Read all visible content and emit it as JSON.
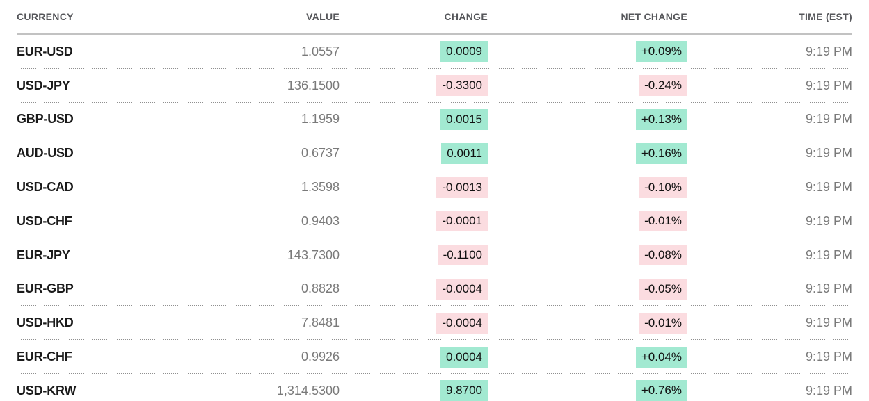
{
  "colors": {
    "positive_bg": "#a2e9d1",
    "negative_bg": "#fbdce0",
    "header_text": "#55565a",
    "ticker_text": "#1a1a1a",
    "muted_text": "#7a7a7a",
    "header_rule": "#c2c2c2",
    "dotted_rule": "#8f8f8f"
  },
  "table": {
    "columns": [
      {
        "label": "CURRENCY"
      },
      {
        "label": "VALUE"
      },
      {
        "label": "CHANGE"
      },
      {
        "label": "NET CHANGE"
      },
      {
        "label": "TIME (EST)"
      }
    ],
    "rows": [
      {
        "currency": "EUR-USD",
        "value": "1.0557",
        "change": "0.0009",
        "net_change": "+0.09%",
        "time": "9:19 PM",
        "direction": "up"
      },
      {
        "currency": "USD-JPY",
        "value": "136.1500",
        "change": "-0.3300",
        "net_change": "-0.24%",
        "time": "9:19 PM",
        "direction": "down"
      },
      {
        "currency": "GBP-USD",
        "value": "1.1959",
        "change": "0.0015",
        "net_change": "+0.13%",
        "time": "9:19 PM",
        "direction": "up"
      },
      {
        "currency": "AUD-USD",
        "value": "0.6737",
        "change": "0.0011",
        "net_change": "+0.16%",
        "time": "9:19 PM",
        "direction": "up"
      },
      {
        "currency": "USD-CAD",
        "value": "1.3598",
        "change": "-0.0013",
        "net_change": "-0.10%",
        "time": "9:19 PM",
        "direction": "down"
      },
      {
        "currency": "USD-CHF",
        "value": "0.9403",
        "change": "-0.0001",
        "net_change": "-0.01%",
        "time": "9:19 PM",
        "direction": "down"
      },
      {
        "currency": "EUR-JPY",
        "value": "143.7300",
        "change": "-0.1100",
        "net_change": "-0.08%",
        "time": "9:19 PM",
        "direction": "down"
      },
      {
        "currency": "EUR-GBP",
        "value": "0.8828",
        "change": "-0.0004",
        "net_change": "-0.05%",
        "time": "9:19 PM",
        "direction": "down"
      },
      {
        "currency": "USD-HKD",
        "value": "7.8481",
        "change": "-0.0004",
        "net_change": "-0.01%",
        "time": "9:19 PM",
        "direction": "down"
      },
      {
        "currency": "EUR-CHF",
        "value": "0.9926",
        "change": "0.0004",
        "net_change": "+0.04%",
        "time": "9:19 PM",
        "direction": "up"
      },
      {
        "currency": "USD-KRW",
        "value": "1,314.5300",
        "change": "9.8700",
        "net_change": "+0.76%",
        "time": "9:19 PM",
        "direction": "up"
      }
    ]
  }
}
